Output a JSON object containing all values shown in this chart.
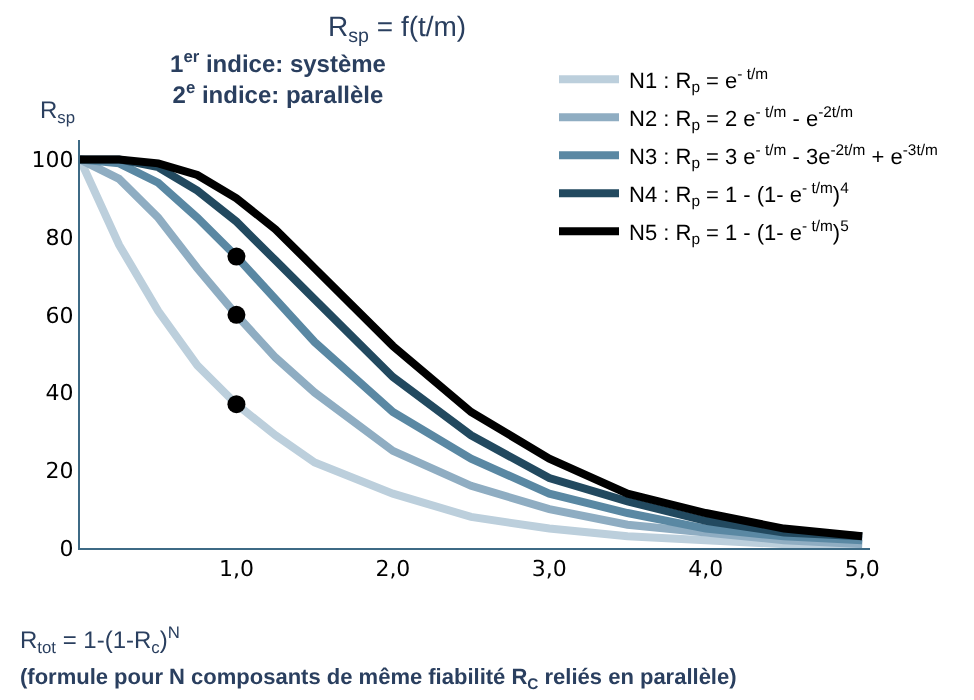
{
  "chart_data": {
    "type": "line",
    "title": "R$_{sp}$ = f(t/m)",
    "subtitle": "1$^{er}$ indice: système\n2$^{e}$ indice: parallèle",
    "ylabel": "R$_{sp}$",
    "annotations": [
      "R$_{tot}$ = 1-(1-R$_{c}$)$^{N}$",
      "(formule pour N composants de même fiabilité R$_{C}$ reliés en parallèle)"
    ],
    "x": [
      0,
      0.25,
      0.5,
      0.75,
      1,
      1.25,
      1.5,
      2,
      2.5,
      3,
      3.5,
      4,
      4.5,
      5
    ],
    "series": [
      {
        "name": "N1 : R$_{p}$ = e$^{- t/m}$",
        "color": "#bccfdc",
        "values": [
          100,
          78,
          61,
          47,
          37,
          29,
          22,
          14,
          8,
          5,
          3,
          2,
          1,
          1
        ]
      },
      {
        "name": "N2 : R$_{p}$ = 2 e$^{- t/m}$ - e$^{-2t/m}$",
        "color": "#8fadc2",
        "values": [
          100,
          95,
          85,
          72,
          60,
          49,
          40,
          25,
          16,
          10,
          6,
          4,
          2,
          1
        ]
      },
      {
        "name": "N3 : R$_{p}$ = 3 e$^{- t/m}$ - 3e$^{-2t/m}$ + e$^{-3t/m}$",
        "color": "#5a88a3",
        "values": [
          100,
          99,
          94,
          85,
          75,
          64,
          53,
          35,
          23,
          14,
          9,
          5,
          3,
          2
        ]
      },
      {
        "name": "N4 : R$_{p}$ = 1 - (1- e$^{- t/m}$)$^{4}$",
        "color": "#22495f",
        "values": [
          100,
          100,
          98,
          92,
          84,
          74,
          64,
          44,
          29,
          18,
          12,
          7,
          4,
          3
        ]
      },
      {
        "name": "N5 : R$_{p}$ = 1 - (1- e$^{- t/m}$)$^{5}$",
        "color": "#000000",
        "values": [
          100,
          100,
          99,
          96,
          90,
          82,
          72,
          52,
          35,
          23,
          14,
          9,
          5,
          3
        ]
      },
      {
        "type": "scatter",
        "color": "#000000",
        "marker": "circle",
        "values": [
          null,
          null,
          null,
          null,
          37,
          null,
          null,
          null,
          null,
          null,
          null,
          null,
          null,
          null
        ]
      },
      {
        "type": "scatter",
        "color": "#000000",
        "marker": "circle",
        "values": [
          null,
          null,
          null,
          null,
          60,
          null,
          null,
          null,
          null,
          null,
          null,
          null,
          null,
          null
        ]
      },
      {
        "type": "scatter",
        "color": "#000000",
        "marker": "circle",
        "values": [
          null,
          null,
          null,
          null,
          75,
          null,
          null,
          null,
          null,
          null,
          null,
          null,
          null,
          null
        ]
      }
    ],
    "xlim": [
      0,
      5.05
    ],
    "xticks": [
      {
        "value": 1,
        "label": "1,0"
      },
      {
        "value": 2,
        "label": "2,0"
      },
      {
        "value": 3,
        "label": "3,0"
      },
      {
        "value": 4,
        "label": "4,0"
      },
      {
        "value": 5,
        "label": "5,0"
      }
    ],
    "ylim": [
      0,
      105
    ],
    "yticks": [
      0,
      20,
      40,
      60,
      80,
      100
    ],
    "legend": "top right",
    "marker": "none",
    "line_style": "solid"
  }
}
